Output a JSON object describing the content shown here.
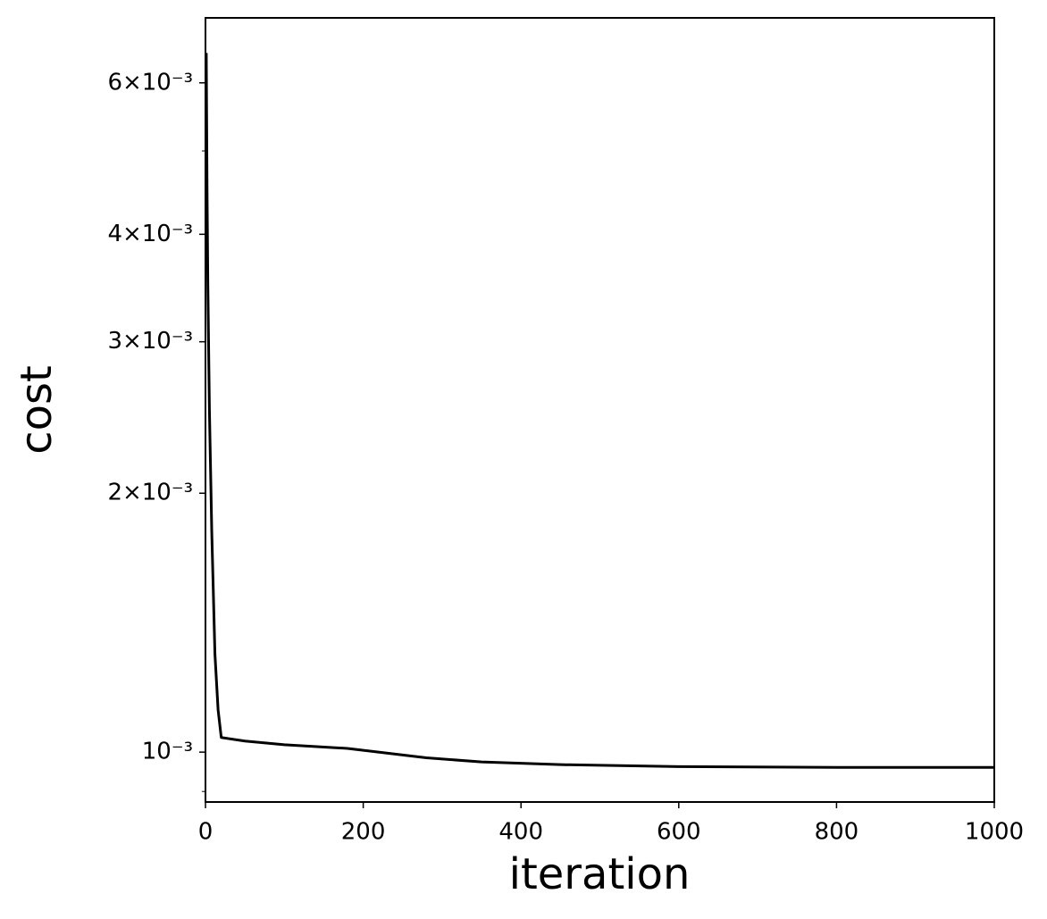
{
  "chart_data": {
    "type": "line",
    "x_label": "iteration",
    "y_label": "cost",
    "x": [
      1,
      2,
      3,
      5,
      8,
      12,
      16,
      20,
      50,
      100,
      180,
      280,
      350,
      450,
      600,
      800,
      1000
    ],
    "series": [
      {
        "color": "#000000",
        "values": [
          0.0065,
          0.0045,
          0.0035,
          0.0025,
          0.0018,
          0.0013,
          0.00112,
          0.00104,
          0.00103,
          0.00102,
          0.00101,
          0.000985,
          0.000974,
          0.000967,
          0.000962,
          0.00096,
          0.00096
        ]
      }
    ],
    "xlim": [
      0,
      1000
    ],
    "xticks": [
      0,
      200,
      400,
      600,
      800,
      1000
    ],
    "ylim": [
      0.000875,
      0.00714
    ],
    "y_log_scale": true,
    "yticks": [
      {
        "value": 0.001,
        "label": "10⁻³"
      },
      {
        "value": 0.002,
        "label": "2×10⁻³"
      },
      {
        "value": 0.003,
        "label": "3×10⁻³"
      },
      {
        "value": 0.004,
        "label": "4×10⁻³"
      },
      {
        "value": 0.006,
        "label": "6×10⁻³"
      }
    ],
    "yminorticks": [
      0.0009,
      0.005
    ],
    "grid": false
  }
}
